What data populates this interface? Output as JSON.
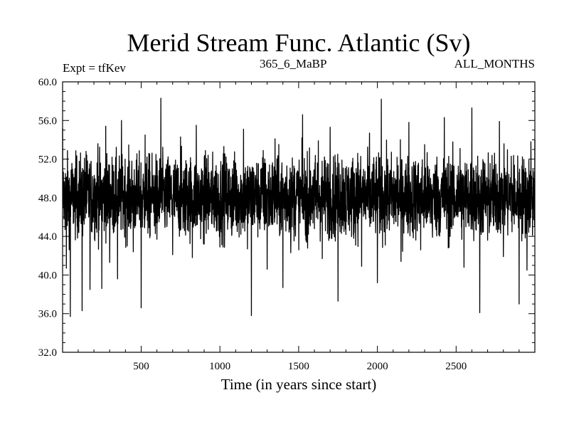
{
  "chart_data": {
    "type": "line",
    "title": "Merid Stream Func. Atlantic (Sv)",
    "subtitle_left": "Expt = tfKev",
    "subtitle_center": "365_6_MaBP",
    "subtitle_right": "ALL_MONTHS",
    "xlabel": "Time (in years since start)",
    "ylabel": "",
    "xlim": [
      1,
      3000
    ],
    "ylim": [
      32.0,
      60.0
    ],
    "xticks": [
      500,
      1000,
      1500,
      2000,
      2500
    ],
    "yticks": [
      "32.0",
      "36.0",
      "40.0",
      "44.0",
      "48.0",
      "52.0",
      "56.0",
      "60.0"
    ],
    "grid": false,
    "series": [
      {
        "color": "#000000",
        "description": "annual time series fluctuating around ~48 Sv, range roughly 35.7 to 58.3",
        "x": [
          1,
          25,
          50,
          75,
          100,
          125,
          150,
          175,
          200,
          225,
          250,
          275,
          300,
          325,
          350,
          375,
          400,
          425,
          450,
          475,
          500,
          525,
          550,
          575,
          600,
          625,
          650,
          675,
          700,
          725,
          750,
          775,
          800,
          825,
          850,
          875,
          900,
          925,
          950,
          975,
          1000,
          1025,
          1050,
          1075,
          1100,
          1125,
          1150,
          1175,
          1200,
          1225,
          1250,
          1275,
          1300,
          1325,
          1350,
          1375,
          1400,
          1425,
          1450,
          1475,
          1500,
          1525,
          1550,
          1575,
          1600,
          1625,
          1650,
          1675,
          1700,
          1725,
          1750,
          1775,
          1800,
          1825,
          1850,
          1875,
          1900,
          1925,
          1950,
          1975,
          2000,
          2025,
          2050,
          2075,
          2100,
          2125,
          2150,
          2175,
          2200,
          2225,
          2250,
          2275,
          2300,
          2325,
          2350,
          2375,
          2400,
          2425,
          2450,
          2475,
          2500,
          2525,
          2550,
          2575,
          2600,
          2625,
          2650,
          2675,
          2700,
          2725,
          2750,
          2775,
          2800,
          2825,
          2850,
          2875,
          2900,
          2925,
          2950,
          2975,
          3000
        ],
        "y": [
          55.2,
          40.7,
          35.7,
          50.1,
          46.3,
          36.3,
          52.8,
          38.5,
          49.9,
          53.6,
          38.6,
          55.4,
          41.3,
          48.7,
          39.6,
          56.0,
          45.1,
          51.8,
          42.4,
          47.2,
          36.6,
          54.5,
          44.9,
          49.3,
          43.7,
          58.3,
          45.8,
          51.1,
          42.1,
          48.4,
          54.3,
          44.6,
          50.7,
          41.8,
          55.5,
          46.9,
          43.2,
          52.4,
          45.3,
          49.8,
          42.9,
          53.3,
          47.6,
          44.1,
          51.6,
          45.7,
          55.1,
          42.7,
          35.8,
          50.2,
          45.4,
          52.9,
          40.6,
          48.3,
          54.1,
          46.2,
          38.7,
          51.3,
          42.3,
          49.6,
          45.9,
          56.6,
          43.4,
          50.8,
          44.8,
          53.9,
          41.7,
          48.2,
          55.3,
          46.5,
          37.3,
          51.9,
          44.2,
          49.1,
          43.8,
          52.6,
          40.9,
          47.7,
          54.7,
          45.6,
          39.2,
          58.2,
          43.1,
          50.5,
          46.7,
          52.2,
          41.4,
          48.9,
          55.8,
          44.4,
          50.3,
          42.6,
          53.5,
          47.1,
          43.9,
          51.4,
          45.2,
          56.3,
          42.8,
          49.4,
          46.1,
          53.1,
          40.8,
          48.6,
          57.3,
          44.7,
          36.1,
          51.7,
          43.6,
          49.7,
          45.5,
          55.9,
          41.9,
          48.1,
          52.3,
          46.4,
          37.0,
          50.9,
          40.5,
          53.8,
          54.0
        ]
      }
    ]
  }
}
